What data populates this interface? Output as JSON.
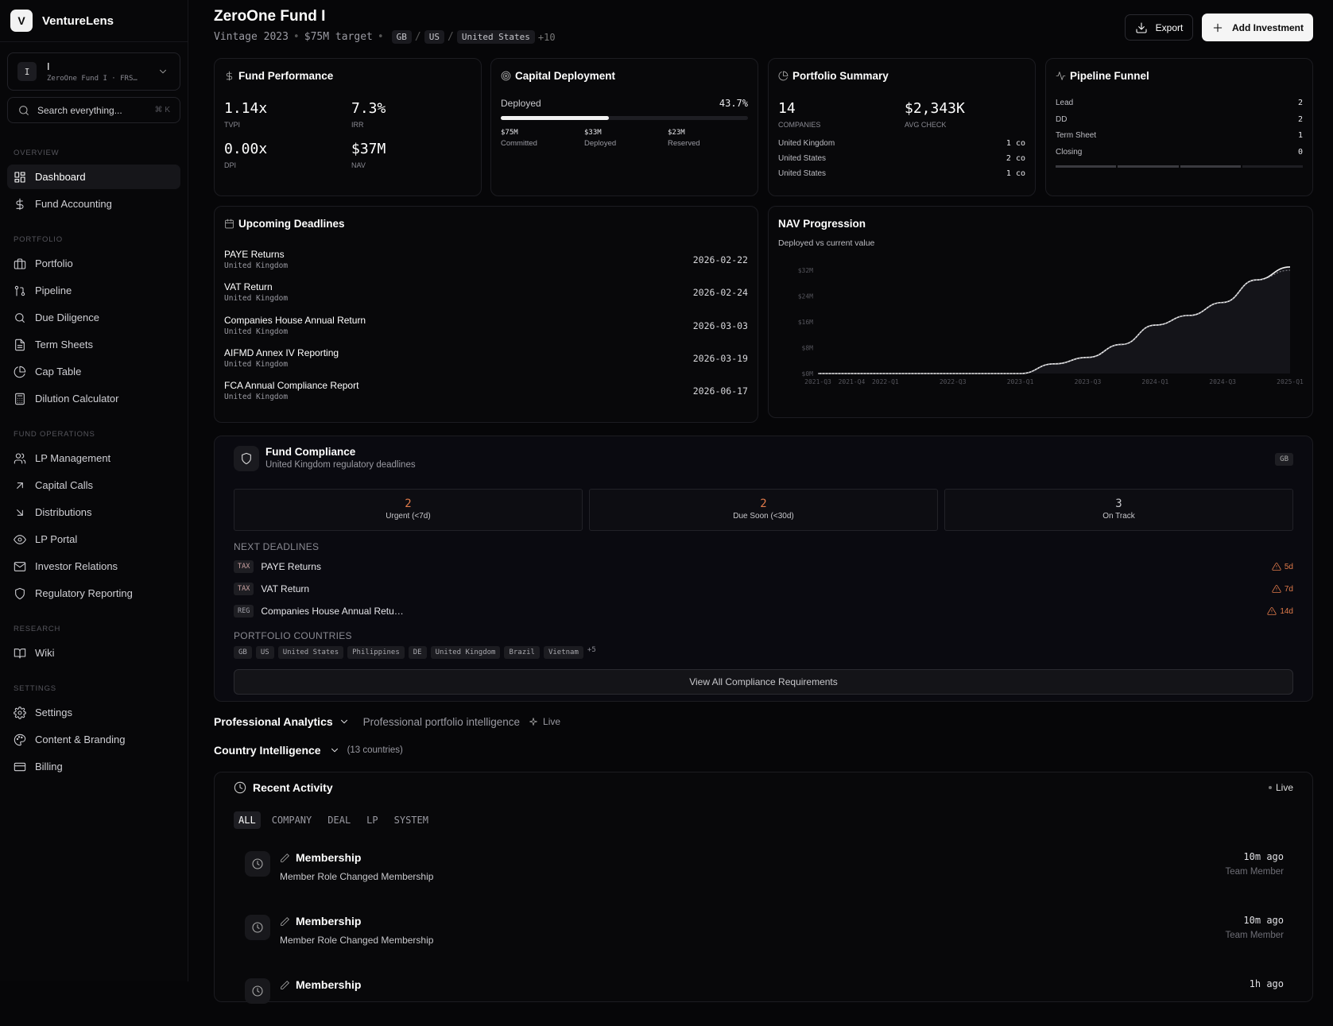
{
  "brand": {
    "logo": "V",
    "name": "VentureLens"
  },
  "fund_switcher": {
    "badge": "I",
    "name": "I",
    "sub": "ZeroOne Fund I · FRS…"
  },
  "search": {
    "placeholder": "Search everything...",
    "shortcut": "⌘ K"
  },
  "nav": {
    "overview": {
      "label": "OVERVIEW",
      "items": [
        {
          "label": "Dashboard",
          "icon": "dashboard-icon"
        },
        {
          "label": "Fund Accounting",
          "icon": "dollar-icon"
        }
      ]
    },
    "portfolio": {
      "label": "PORTFOLIO",
      "items": [
        {
          "label": "Portfolio",
          "icon": "briefcase-icon"
        },
        {
          "label": "Pipeline",
          "icon": "git-pull-icon"
        },
        {
          "label": "Due Diligence",
          "icon": "search-icon"
        },
        {
          "label": "Term Sheets",
          "icon": "file-text-icon"
        },
        {
          "label": "Cap Table",
          "icon": "pie-chart-icon"
        },
        {
          "label": "Dilution Calculator",
          "icon": "calculator-icon"
        }
      ]
    },
    "fund_ops": {
      "label": "FUND OPERATIONS",
      "items": [
        {
          "label": "LP Management",
          "icon": "users-icon"
        },
        {
          "label": "Capital Calls",
          "icon": "arrow-up-right-icon"
        },
        {
          "label": "Distributions",
          "icon": "arrow-down-right-icon"
        },
        {
          "label": "LP Portal",
          "icon": "eye-icon"
        },
        {
          "label": "Investor Relations",
          "icon": "mail-icon"
        },
        {
          "label": "Regulatory Reporting",
          "icon": "shield-icon"
        }
      ]
    },
    "research": {
      "label": "RESEARCH",
      "items": [
        {
          "label": "Wiki",
          "icon": "book-icon"
        }
      ]
    },
    "settings": {
      "label": "SETTINGS",
      "items": [
        {
          "label": "Settings",
          "icon": "gear-icon"
        },
        {
          "label": "Content & Branding",
          "icon": "palette-icon"
        },
        {
          "label": "Billing",
          "icon": "credit-card-icon"
        }
      ]
    }
  },
  "header": {
    "title": "ZeroOne Fund I",
    "vintage": "Vintage 2023",
    "target": "$75M target",
    "chips": [
      "GB",
      "US",
      "United States"
    ],
    "more": "+10",
    "export_label": "Export",
    "add_label": "Add Investment"
  },
  "fund_performance": {
    "title": "Fund Performance",
    "tvpi": {
      "value": "1.14x",
      "label": "TVPI"
    },
    "irr": {
      "value": "7.3%",
      "label": "IRR"
    },
    "dpi": {
      "value": "0.00x",
      "label": "DPI"
    },
    "nav": {
      "value": "$37M",
      "label": "NAV"
    }
  },
  "capital_deployment": {
    "title": "Capital Deployment",
    "deployed_label": "Deployed",
    "deployed_pct": "43.7%",
    "progress": 0.437,
    "committed": {
      "value": "$75M",
      "label": "Committed"
    },
    "deployed": {
      "value": "$33M",
      "label": "Deployed"
    },
    "reserved": {
      "value": "$23M",
      "label": "Reserved"
    }
  },
  "portfolio_summary": {
    "title": "Portfolio Summary",
    "companies": {
      "value": "14",
      "label": "COMPANIES"
    },
    "avg_check": {
      "value": "$2,343K",
      "label": "AVG CHECK"
    },
    "rows": [
      {
        "country": "United Kingdom",
        "count": "1 co"
      },
      {
        "country": "United States",
        "count": "2 co"
      },
      {
        "country": "United States",
        "count": "1 co"
      }
    ]
  },
  "pipeline_funnel": {
    "title": "Pipeline Funnel",
    "stages": [
      {
        "label": "Lead",
        "count": "2"
      },
      {
        "label": "DD",
        "count": "2"
      },
      {
        "label": "Term Sheet",
        "count": "1"
      },
      {
        "label": "Closing",
        "count": "0"
      }
    ]
  },
  "upcoming_deadlines": {
    "title": "Upcoming Deadlines",
    "items": [
      {
        "name": "PAYE Returns",
        "country": "United Kingdom",
        "date": "2026-02-22"
      },
      {
        "name": "VAT Return",
        "country": "United Kingdom",
        "date": "2026-02-24"
      },
      {
        "name": "Companies House Annual Return",
        "country": "United Kingdom",
        "date": "2026-03-03"
      },
      {
        "name": "AIFMD Annex IV Reporting",
        "country": "United Kingdom",
        "date": "2026-03-19"
      },
      {
        "name": "FCA Annual Compliance Report",
        "country": "United Kingdom",
        "date": "2026-06-17"
      }
    ]
  },
  "nav_progression": {
    "title": "NAV Progression",
    "subtitle": "Deployed vs current value"
  },
  "chart_data": {
    "type": "area",
    "title": "NAV Progression",
    "subtitle": "Deployed vs current value",
    "x": [
      "2021-Q3",
      "2021-Q4",
      "2022-Q1",
      "2022-Q2",
      "2022-Q3",
      "2022-Q4",
      "2023-Q1",
      "2023-Q2",
      "2023-Q3",
      "2023-Q4",
      "2024-Q1",
      "2024-Q2",
      "2024-Q3",
      "2024-Q4",
      "2025-Q1"
    ],
    "x_tick_labels": [
      "2021-Q3",
      "2021-Q4",
      "2022-Q1",
      "2022-Q3",
      "2023-Q1",
      "2023-Q3",
      "2024-Q1",
      "2024-Q3",
      "2025-Q1"
    ],
    "series": [
      {
        "values": [
          0,
          0,
          0,
          0,
          0,
          0,
          0,
          3,
          5,
          9,
          15,
          18,
          22,
          29,
          33
        ]
      },
      {
        "values": [
          0,
          0,
          0,
          0,
          0,
          0,
          0,
          3,
          5,
          9,
          15,
          18,
          22,
          29,
          32
        ]
      }
    ],
    "y_ticks": [
      "$0M",
      "$8M",
      "$16M",
      "$24M",
      "$32M"
    ],
    "ylim": [
      0,
      32
    ],
    "grid": false
  },
  "compliance": {
    "title": "Fund Compliance",
    "subtitle": "United Kingdom regulatory deadlines",
    "badge": "GB",
    "stats": [
      {
        "value": "2",
        "label": "Urgent (<7d)",
        "color": "#e07a4a"
      },
      {
        "value": "2",
        "label": "Due Soon (<30d)",
        "color": "#e07a4a"
      },
      {
        "value": "3",
        "label": "On Track",
        "color": "#c8c8cc"
      }
    ],
    "next_label": "NEXT DEADLINES",
    "next": [
      {
        "tag": "TAX",
        "name": "PAYE Returns",
        "due": "5d"
      },
      {
        "tag": "TAX",
        "name": "VAT Return",
        "due": "7d"
      },
      {
        "tag": "REG",
        "name": "Companies House Annual Retu…",
        "due": "14d"
      }
    ],
    "countries_label": "PORTFOLIO COUNTRIES",
    "countries": [
      "GB",
      "US",
      "United States",
      "Philippines",
      "DE",
      "United Kingdom",
      "Brazil",
      "Vietnam"
    ],
    "countries_more": "+5",
    "view_all": "View All Compliance Requirements"
  },
  "professional_analytics": {
    "title": "Professional Analytics",
    "subtitle": "Professional portfolio intelligence",
    "live": "Live"
  },
  "country_intelligence": {
    "title": "Country Intelligence",
    "count": "(13 countries)"
  },
  "recent_activity": {
    "title": "Recent Activity",
    "live": "Live",
    "tabs": [
      "ALL",
      "COMPANY",
      "DEAL",
      "LP",
      "SYSTEM"
    ],
    "items": [
      {
        "title": "Membership",
        "desc": "Member Role Changed Membership",
        "time": "10m ago",
        "who": "Team Member"
      },
      {
        "title": "Membership",
        "desc": "Member Role Changed Membership",
        "time": "10m ago",
        "who": "Team Member"
      },
      {
        "title": "Membership",
        "desc": "",
        "time": "1h ago",
        "who": ""
      }
    ]
  }
}
